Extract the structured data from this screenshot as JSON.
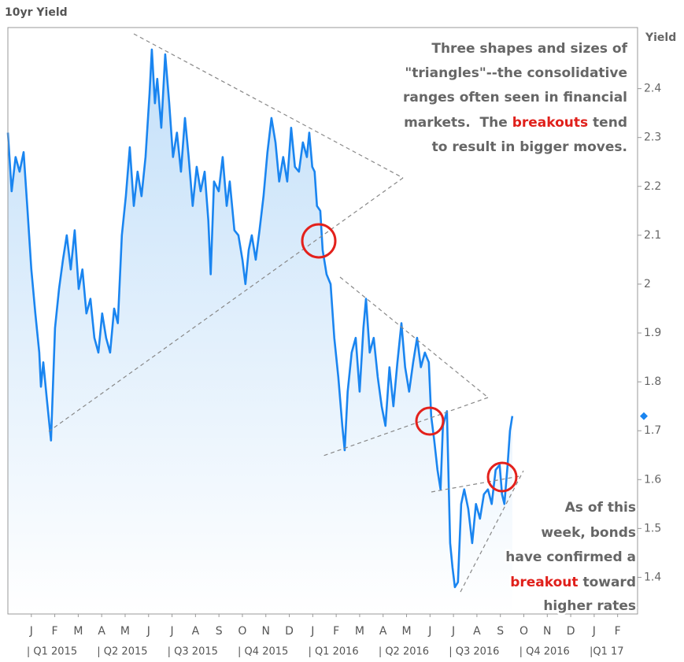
{
  "chart_data": {
    "type": "line",
    "title": "10yr Yield",
    "y_axis_label": "Yield",
    "xlim": [
      -0.5,
      26.35
    ],
    "ylim": [
      1.325,
      2.525
    ],
    "yticks": [
      1.4,
      1.5,
      1.6,
      1.7,
      1.8,
      1.9,
      2,
      2.1,
      2.2,
      2.3,
      2.4
    ],
    "xticks": [
      {
        "value": 0.5,
        "label": "J"
      },
      {
        "value": 1.5,
        "label": "F"
      },
      {
        "value": 2.5,
        "label": "M"
      },
      {
        "value": 3.5,
        "label": "A"
      },
      {
        "value": 4.5,
        "label": "M"
      },
      {
        "value": 5.5,
        "label": "J"
      },
      {
        "value": 6.5,
        "label": "J"
      },
      {
        "value": 7.5,
        "label": "A"
      },
      {
        "value": 8.5,
        "label": "S"
      },
      {
        "value": 9.5,
        "label": "O"
      },
      {
        "value": 10.5,
        "label": "N"
      },
      {
        "value": 11.5,
        "label": "D"
      },
      {
        "value": 12.5,
        "label": "J"
      },
      {
        "value": 13.5,
        "label": "F"
      },
      {
        "value": 14.5,
        "label": "M"
      },
      {
        "value": 15.5,
        "label": "A"
      },
      {
        "value": 16.5,
        "label": "M"
      },
      {
        "value": 17.5,
        "label": "J"
      },
      {
        "value": 18.5,
        "label": "J"
      },
      {
        "value": 19.5,
        "label": "A"
      },
      {
        "value": 20.5,
        "label": "S"
      },
      {
        "value": 21.5,
        "label": "O"
      },
      {
        "value": 22.5,
        "label": "N"
      },
      {
        "value": 23.5,
        "label": "D"
      },
      {
        "value": 24.5,
        "label": "J"
      },
      {
        "value": 25.5,
        "label": "F"
      }
    ],
    "quarters": [
      {
        "value": 0,
        "label": "| Q1 2015"
      },
      {
        "value": 3,
        "label": "| Q2 2015"
      },
      {
        "value": 6,
        "label": "| Q3 2015"
      },
      {
        "value": 9,
        "label": "| Q4 2015"
      },
      {
        "value": 12,
        "label": "| Q1 2016"
      },
      {
        "value": 15,
        "label": "| Q2 2016"
      },
      {
        "value": 18,
        "label": "| Q3 2016"
      },
      {
        "value": 21,
        "label": "| Q4 2016"
      },
      {
        "value": 24,
        "label": "|Q1 17"
      }
    ],
    "grid": false,
    "area_fill": "#c4e0f9",
    "series": [
      {
        "name": "10yr Yield",
        "color": "#1a85f0",
        "x": [
          -0.5,
          -0.34,
          -0.17,
          0,
          0.17,
          0.34,
          0.5,
          0.67,
          0.84,
          0.91,
          1.01,
          1.17,
          1.34,
          1.51,
          1.68,
          1.85,
          2.01,
          2.18,
          2.35,
          2.52,
          2.68,
          2.85,
          3.02,
          3.19,
          3.36,
          3.52,
          3.69,
          3.86,
          4.03,
          4.19,
          4.36,
          4.53,
          4.7,
          4.87,
          5.03,
          5.2,
          5.37,
          5.54,
          5.64,
          5.77,
          5.87,
          6.04,
          6.21,
          6.38,
          6.54,
          6.71,
          6.88,
          7.05,
          7.21,
          7.38,
          7.55,
          7.72,
          7.89,
          8.05,
          8.15,
          8.29,
          8.49,
          8.66,
          8.83,
          8.96,
          9.16,
          9.33,
          9.5,
          9.63,
          9.77,
          9.9,
          10.07,
          10.23,
          10.4,
          10.57,
          10.74,
          10.91,
          11.07,
          11.24,
          11.41,
          11.58,
          11.74,
          11.91,
          12.08,
          12.25,
          12.35,
          12.48,
          12.58,
          12.68,
          12.82,
          12.92,
          13.09,
          13.26,
          13.42,
          13.59,
          13.76,
          13.86,
          13.99,
          14.16,
          14.33,
          14.5,
          14.66,
          14.77,
          14.93,
          15.1,
          15.27,
          15.44,
          15.6,
          15.77,
          15.94,
          16.11,
          16.28,
          16.44,
          16.61,
          16.78,
          16.95,
          17.11,
          17.28,
          17.45,
          17.55,
          17.68,
          17.82,
          17.95,
          18.05,
          18.22,
          18.36,
          18.46,
          18.56,
          18.69,
          18.83,
          18.96,
          19.13,
          19.3,
          19.46,
          19.63,
          19.8,
          19.97,
          20.13,
          20.3,
          20.47,
          20.57,
          20.67,
          20.81,
          20.91,
          21.01
        ],
        "values": [
          2.31,
          2.19,
          2.26,
          2.23,
          2.27,
          2.15,
          2.03,
          1.94,
          1.86,
          1.79,
          1.84,
          1.76,
          1.68,
          1.91,
          1.99,
          2.05,
          2.1,
          2.03,
          2.11,
          1.99,
          2.03,
          1.94,
          1.97,
          1.89,
          1.86,
          1.94,
          1.89,
          1.86,
          1.95,
          1.92,
          2.1,
          2.18,
          2.28,
          2.16,
          2.23,
          2.18,
          2.26,
          2.39,
          2.48,
          2.37,
          2.42,
          2.32,
          2.47,
          2.37,
          2.26,
          2.31,
          2.23,
          2.34,
          2.26,
          2.16,
          2.24,
          2.19,
          2.23,
          2.13,
          2.02,
          2.21,
          2.19,
          2.26,
          2.16,
          2.21,
          2.11,
          2.1,
          2.05,
          2.0,
          2.07,
          2.1,
          2.05,
          2.11,
          2.18,
          2.27,
          2.34,
          2.29,
          2.21,
          2.26,
          2.21,
          2.32,
          2.24,
          2.23,
          2.29,
          2.26,
          2.31,
          2.24,
          2.23,
          2.16,
          2.15,
          2.07,
          2.02,
          2.0,
          1.89,
          1.81,
          1.71,
          1.66,
          1.78,
          1.86,
          1.89,
          1.78,
          1.91,
          1.97,
          1.86,
          1.89,
          1.81,
          1.75,
          1.71,
          1.83,
          1.75,
          1.84,
          1.92,
          1.83,
          1.78,
          1.84,
          1.89,
          1.83,
          1.86,
          1.84,
          1.73,
          1.68,
          1.62,
          1.58,
          1.71,
          1.74,
          1.47,
          1.42,
          1.38,
          1.39,
          1.55,
          1.58,
          1.54,
          1.47,
          1.55,
          1.52,
          1.57,
          1.58,
          1.55,
          1.62,
          1.63,
          1.57,
          1.55,
          1.63,
          1.7,
          1.73
        ]
      }
    ],
    "annotations": [
      {
        "lines": [
          [
            "Three shapes and sizes of"
          ],
          [
            "\"triangles\"--the consolidative"
          ],
          [
            "ranges often seen in financial"
          ],
          [
            "markets.  The ",
            "breakouts",
            " tend"
          ],
          [
            "to result in bigger moves."
          ]
        ]
      },
      {
        "lines": [
          [
            "As of this"
          ],
          [
            "week, bonds"
          ],
          [
            "have confirmed a"
          ],
          [
            "breakout",
            " toward"
          ],
          [
            "higher rates"
          ]
        ]
      }
    ]
  }
}
